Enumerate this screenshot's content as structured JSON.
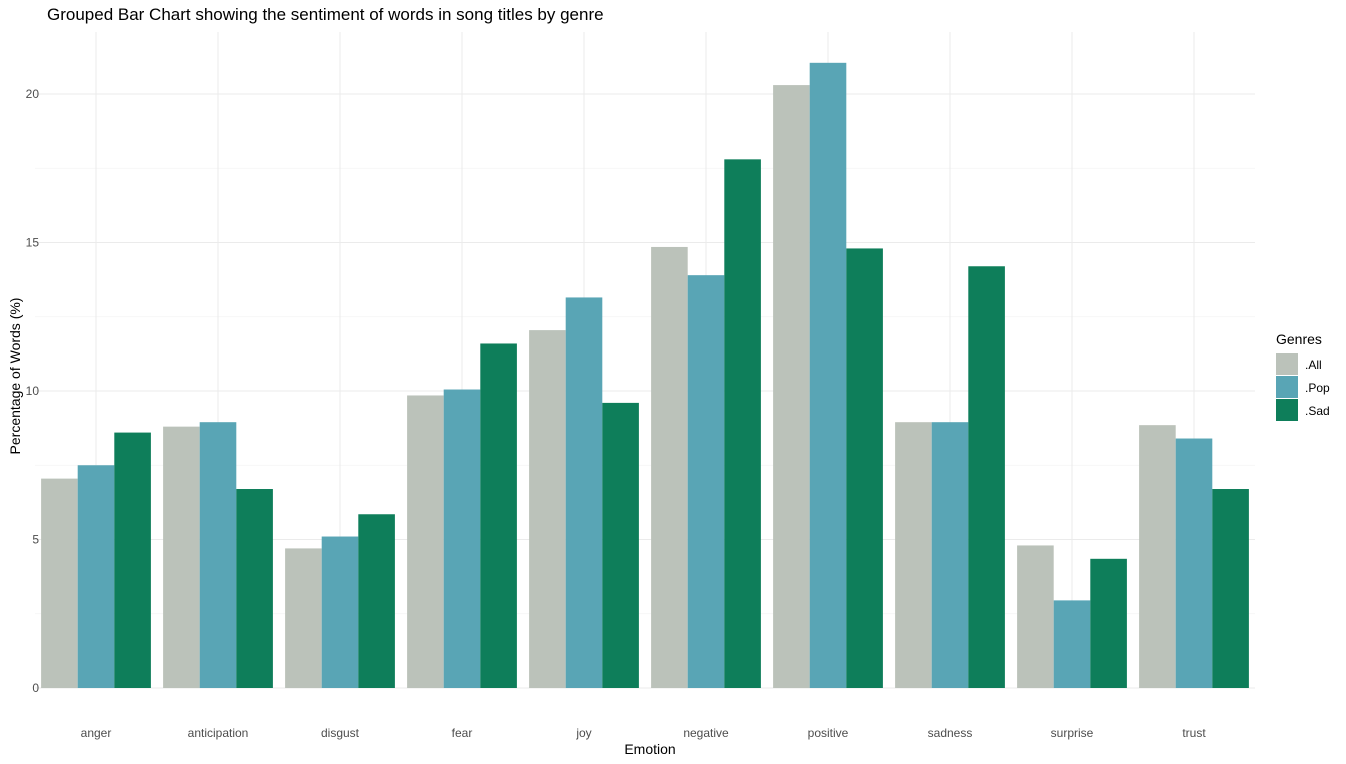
{
  "chart_data": {
    "type": "bar",
    "title": "Grouped Bar Chart showing the sentiment of words in song titles by genre",
    "xlabel": "Emotion",
    "ylabel": "Percentage of Words (%)",
    "ylim": [
      0,
      22
    ],
    "yticks": [
      0,
      5,
      10,
      15,
      20
    ],
    "grid": true,
    "legend": {
      "title": "Genres",
      "placement": "right"
    },
    "categories": [
      "anger",
      "anticipation",
      "disgust",
      "fear",
      "joy",
      "negative",
      "positive",
      "sadness",
      "surprise",
      "trust"
    ],
    "series": [
      {
        "name": ".All",
        "color": "#bbc2ba",
        "values": [
          7.05,
          8.8,
          4.7,
          9.85,
          12.05,
          14.85,
          20.3,
          8.95,
          4.8,
          8.85
        ]
      },
      {
        "name": ".Pop",
        "color": "#59a5b5",
        "values": [
          7.5,
          8.95,
          5.1,
          10.05,
          13.15,
          13.9,
          21.05,
          8.95,
          2.95,
          8.4
        ]
      },
      {
        "name": ".Sad",
        "color": "#0e7e5a",
        "values": [
          8.6,
          6.7,
          5.85,
          11.6,
          9.6,
          17.8,
          14.8,
          14.2,
          4.35,
          6.7
        ]
      }
    ]
  }
}
